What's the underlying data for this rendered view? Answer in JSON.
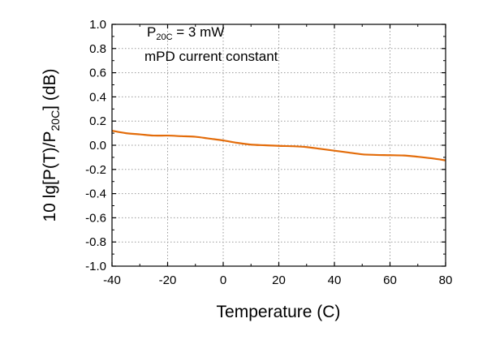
{
  "chart_data": {
    "type": "line",
    "title": "",
    "xlabel": "Temperature (C)",
    "ylabel": {
      "prefix": "10 lg[P(T)/P",
      "subscript": "20C",
      "suffix": "] (dB)"
    },
    "xlim": [
      -40,
      80
    ],
    "ylim": [
      -1.0,
      1.0
    ],
    "x_ticks": [
      -40,
      -20,
      0,
      20,
      40,
      60,
      80
    ],
    "x_tick_labels": [
      "-40",
      "-20",
      "0",
      "20",
      "40",
      "60",
      "80"
    ],
    "y_ticks": [
      1.0,
      0.8,
      0.6,
      0.4,
      0.2,
      0.0,
      -0.2,
      -0.4,
      -0.6,
      -0.8,
      -1.0
    ],
    "y_tick_labels": [
      "1.0",
      "0.8",
      "0.6",
      "0.4",
      "0.2",
      "0.0",
      "-0.2",
      "-0.4",
      "-0.6",
      "-0.8",
      "-1.0"
    ],
    "grid": true,
    "line_color": "#E36C0A",
    "series": [
      {
        "x": [
          -40,
          -35,
          -30,
          -25,
          -20,
          -15,
          -10,
          -5,
          0,
          5,
          10,
          15,
          20,
          25,
          30,
          35,
          40,
          45,
          50,
          55,
          60,
          65,
          70,
          75,
          80
        ],
        "y": [
          0.12,
          0.1,
          0.09,
          0.08,
          0.08,
          0.075,
          0.07,
          0.055,
          0.04,
          0.02,
          0.005,
          0.0,
          -0.005,
          -0.008,
          -0.015,
          -0.03,
          -0.045,
          -0.06,
          -0.075,
          -0.08,
          -0.082,
          -0.085,
          -0.095,
          -0.108,
          -0.125
        ]
      }
    ],
    "annotations": [
      {
        "prefix": "P",
        "subscript": "20C",
        "suffix": " = 3 mW"
      },
      {
        "text": "mPD current constant"
      }
    ]
  }
}
